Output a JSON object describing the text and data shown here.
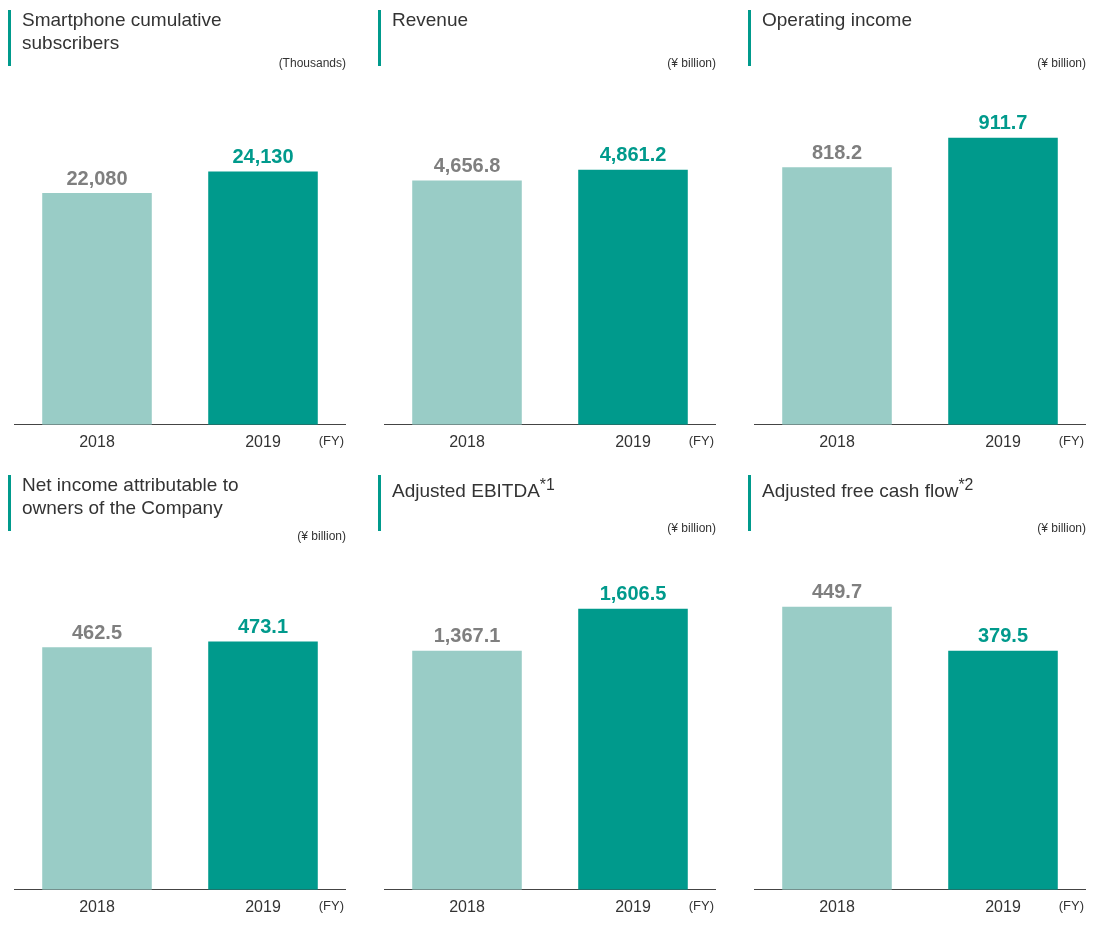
{
  "chart_data": [
    {
      "type": "bar",
      "title": "Smartphone cumulative subscribers",
      "ylabel": "(Thousands)",
      "xlabel": "(FY)",
      "categories": [
        "2018",
        "2019"
      ],
      "values": [
        22080,
        24130
      ],
      "colors": [
        "#99ccc6",
        "#009a8c"
      ],
      "value_labels": [
        "22,080",
        "24,130"
      ],
      "tick_labels": "x",
      "grid": false,
      "legend": false
    },
    {
      "type": "bar",
      "title": "Revenue",
      "ylabel": "(¥ billion)",
      "xlabel": "(FY)",
      "categories": [
        "2018",
        "2019"
      ],
      "values": [
        4656.8,
        4861.2
      ],
      "colors": [
        "#99ccc6",
        "#009a8c"
      ],
      "value_labels": [
        "4,656.8",
        "4,861.2"
      ],
      "tick_labels": "x",
      "grid": false,
      "legend": false
    },
    {
      "type": "bar",
      "title": "Operating income",
      "ylabel": "(¥ billion)",
      "xlabel": "(FY)",
      "categories": [
        "2018",
        "2019"
      ],
      "values": [
        818.2,
        911.7
      ],
      "colors": [
        "#99ccc6",
        "#009a8c"
      ],
      "value_labels": [
        "818.2",
        "911.7"
      ],
      "tick_labels": "x",
      "grid": false,
      "legend": false
    },
    {
      "type": "bar",
      "title": "Net income attributable to owners of the Company",
      "ylabel": "(¥ billion)",
      "xlabel": "(FY)",
      "categories": [
        "2018",
        "2019"
      ],
      "values": [
        462.5,
        473.1
      ],
      "colors": [
        "#99ccc6",
        "#009a8c"
      ],
      "value_labels": [
        "462.5",
        "473.1"
      ],
      "tick_labels": "x",
      "grid": false,
      "legend": false
    },
    {
      "type": "bar",
      "title": "Adjusted EBITDA$^{*1}$",
      "ylabel": "(¥ billion)",
      "xlabel": "(FY)",
      "categories": [
        "2018",
        "2019"
      ],
      "values": [
        1367.1,
        1606.5
      ],
      "colors": [
        "#99ccc6",
        "#009a8c"
      ],
      "value_labels": [
        "1,367.1",
        "1,606.5"
      ],
      "tick_labels": "x",
      "grid": false,
      "legend": false
    },
    {
      "type": "bar",
      "title": "Adjusted free cash flow$^{*2}$",
      "ylabel": "(¥ billion)",
      "xlabel": "(FY)",
      "categories": [
        "2018",
        "2019"
      ],
      "values": [
        449.7,
        379.5
      ],
      "colors": [
        "#99ccc6",
        "#009a8c"
      ],
      "value_labels": [
        "449.7",
        "379.5"
      ],
      "tick_labels": "x",
      "grid": false,
      "legend": false
    }
  ]
}
